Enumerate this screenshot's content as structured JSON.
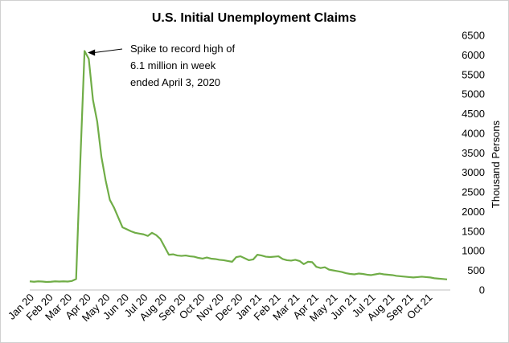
{
  "chart_data": {
    "type": "line",
    "title": "U.S. Initial Unemployment Claims",
    "ylabel": "Thousand Persons",
    "xlabel": "",
    "ylim": [
      0,
      6500
    ],
    "y_ticks": [
      0,
      500,
      1000,
      1500,
      2000,
      2500,
      3000,
      3500,
      4000,
      4500,
      5000,
      5500,
      6000,
      6500
    ],
    "x_tick_labels": [
      "Jan 20",
      "Feb 20",
      "Mar 20",
      "Apr 20",
      "May 20",
      "Jun 20",
      "Jul 20",
      "Aug 20",
      "Sep 20",
      "Oct 20",
      "Nov 20",
      "Dec 20",
      "Jan 21",
      "Feb 21",
      "Mar 21",
      "Apr 21",
      "May 21",
      "Jun 21",
      "Jul 21",
      "Aug 21",
      "Sep 21",
      "Oct 21"
    ],
    "y_axis_position": "right",
    "grid": false,
    "legend": "none",
    "line_color": "#70ad47",
    "annotation": {
      "lines": [
        "Spike to record high of",
        "6.1 million in week",
        "ended April 3, 2020"
      ],
      "target_week": 13
    },
    "series": [
      {
        "values": [
          220,
          210,
          220,
          215,
          205,
          210,
          220,
          215,
          220,
          215,
          230,
          280,
          3300,
          6100,
          5900,
          4850,
          4300,
          3400,
          2800,
          2300,
          2100,
          1850,
          1600,
          1550,
          1500,
          1460,
          1440,
          1420,
          1380,
          1460,
          1400,
          1300,
          1100,
          900,
          910,
          880,
          870,
          880,
          860,
          850,
          820,
          800,
          830,
          800,
          790,
          770,
          760,
          740,
          720,
          840,
          860,
          810,
          760,
          780,
          900,
          880,
          850,
          840,
          850,
          860,
          790,
          760,
          750,
          770,
          740,
          660,
          720,
          710,
          590,
          560,
          580,
          520,
          500,
          480,
          460,
          430,
          410,
          400,
          420,
          410,
          390,
          380,
          400,
          420,
          400,
          390,
          380,
          360,
          350,
          340,
          330,
          320,
          330,
          340,
          330,
          320,
          300,
          290,
          280,
          270
        ]
      }
    ]
  }
}
